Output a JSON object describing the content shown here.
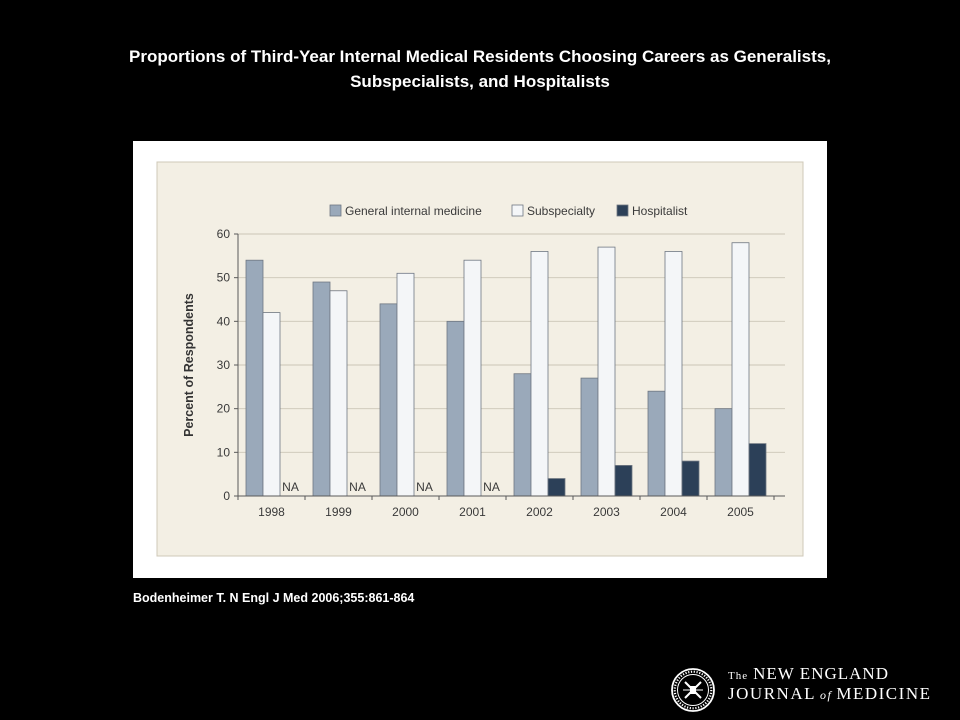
{
  "slide": {
    "background": "#000000",
    "title_lines": [
      "Proportions of Third-Year Internal Medical Residents Choosing Careers as Generalists,",
      "Subspecialists, and Hospitalists"
    ],
    "citation": "Bodenheimer T. N Engl J Med 2006;355:861-864"
  },
  "logo": {
    "seal_icon": "nejm-seal-icon",
    "the": "The",
    "new_england": "NEW ENGLAND",
    "journal": "JOURNAL",
    "of": "of",
    "medicine": "MEDICINE"
  },
  "chart_data": {
    "type": "bar",
    "categories": [
      "1998",
      "1999",
      "2000",
      "2001",
      "2002",
      "2003",
      "2004",
      "2005"
    ],
    "series": [
      {
        "name": "General internal medicine",
        "values": [
          54,
          49,
          44,
          40,
          28,
          27,
          24,
          20
        ],
        "color": "#9aa9ba"
      },
      {
        "name": "Subspecialty",
        "values": [
          42,
          47,
          51,
          54,
          56,
          57,
          56,
          58
        ],
        "color": "#f4f6f8"
      },
      {
        "name": "Hospitalist",
        "values": [
          null,
          null,
          null,
          null,
          4,
          7,
          8,
          12
        ],
        "color": "#2c4058"
      }
    ],
    "missing_label": "NA",
    "ylabel": "Percent of Respondents",
    "ylim": [
      0,
      60
    ],
    "yticks": [
      0,
      10,
      20,
      30,
      40,
      50,
      60
    ],
    "grid": true,
    "legend_position": "top",
    "panel_color": "#f3efe4"
  }
}
